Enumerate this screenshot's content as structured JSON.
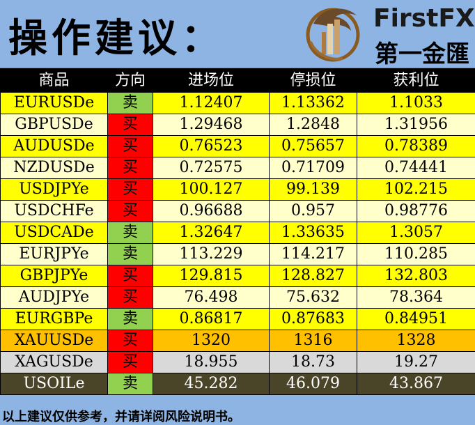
{
  "header": {
    "title": "操作建议：",
    "brand_en": "FirstFX",
    "brand_cn": "第一金匯",
    "logo_icon": "dragon-emblem-icon"
  },
  "colors": {
    "sell": "#92d050",
    "buy": "#ff0000",
    "row_yellow": "#ffff00",
    "row_cream": "#ffffcc",
    "row_gold": "#ffc000",
    "row_silver": "#d9d9d9",
    "row_oil": "#4a4528",
    "header_bg": "#000000",
    "page_bg": "#8db4e2"
  },
  "chart_data": {
    "type": "table",
    "columns": [
      "商品",
      "方向",
      "进场位",
      "停损位",
      "获利位"
    ],
    "rows": [
      {
        "symbol": "EURUSDe",
        "direction": "卖",
        "entry": "1.12407",
        "stop": "1.13362",
        "target": "1.1033",
        "style": "yellow"
      },
      {
        "symbol": "GBPUSDe",
        "direction": "买",
        "entry": "1.29468",
        "stop": "1.2848",
        "target": "1.31956",
        "style": "cream"
      },
      {
        "symbol": "AUDUSDe",
        "direction": "买",
        "entry": "0.76523",
        "stop": "0.75657",
        "target": "0.78389",
        "style": "yellow"
      },
      {
        "symbol": "NZDUSDe",
        "direction": "买",
        "entry": "0.72575",
        "stop": "0.71709",
        "target": "0.74441",
        "style": "cream"
      },
      {
        "symbol": "USDJPYe",
        "direction": "买",
        "entry": "100.127",
        "stop": "99.139",
        "target": "102.215",
        "style": "yellow"
      },
      {
        "symbol": "USDCHFe",
        "direction": "买",
        "entry": "0.96688",
        "stop": "0.957",
        "target": "0.98776",
        "style": "cream"
      },
      {
        "symbol": "USDCADe",
        "direction": "卖",
        "entry": "1.32647",
        "stop": "1.33635",
        "target": "1.3057",
        "style": "yellow"
      },
      {
        "symbol": "EURJPYe",
        "direction": "卖",
        "entry": "113.229",
        "stop": "114.217",
        "target": "110.285",
        "style": "cream"
      },
      {
        "symbol": "GBPJPYe",
        "direction": "买",
        "entry": "129.815",
        "stop": "128.827",
        "target": "132.803",
        "style": "yellow"
      },
      {
        "symbol": "AUDJPYe",
        "direction": "买",
        "entry": "76.498",
        "stop": "75.632",
        "target": "78.364",
        "style": "cream"
      },
      {
        "symbol": "EURGBPe",
        "direction": "卖",
        "entry": "0.86817",
        "stop": "0.87683",
        "target": "0.84951",
        "style": "yellow"
      },
      {
        "symbol": "XAUUSDe",
        "direction": "买",
        "entry": "1320",
        "stop": "1316",
        "target": "1328",
        "style": "gold"
      },
      {
        "symbol": "XAGUSDe",
        "direction": "买",
        "entry": "18.955",
        "stop": "18.73",
        "target": "19.27",
        "style": "silver"
      },
      {
        "symbol": "USOILe",
        "direction": "卖",
        "entry": "45.282",
        "stop": "46.079",
        "target": "43.867",
        "style": "oil"
      }
    ]
  },
  "footer": {
    "disclaimer": "以上建议仅供参考，并请详阅风险说明书。"
  }
}
